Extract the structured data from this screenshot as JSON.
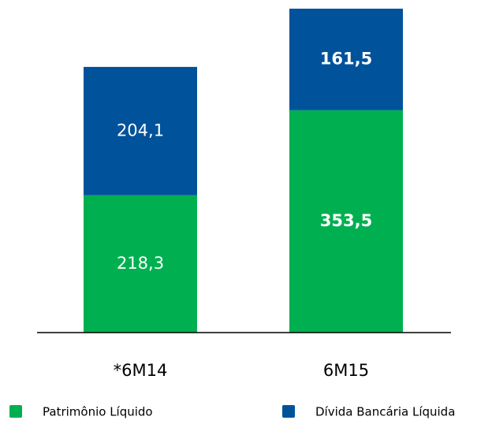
{
  "chart_data": {
    "type": "stacked_bar",
    "categories": [
      "*6M14",
      "6M15"
    ],
    "series": [
      {
        "name": "Patrimônio Líquido",
        "color": "#00b050",
        "values": [
          218.3,
          353.5
        ],
        "value_labels": [
          "218,3",
          "353,5"
        ]
      },
      {
        "name": "Dívida Bancária Líquida",
        "color": "#00529b",
        "values": [
          204.1,
          161.5
        ],
        "value_labels": [
          "204,1",
          "161,5"
        ]
      }
    ],
    "legend": "bottom"
  }
}
